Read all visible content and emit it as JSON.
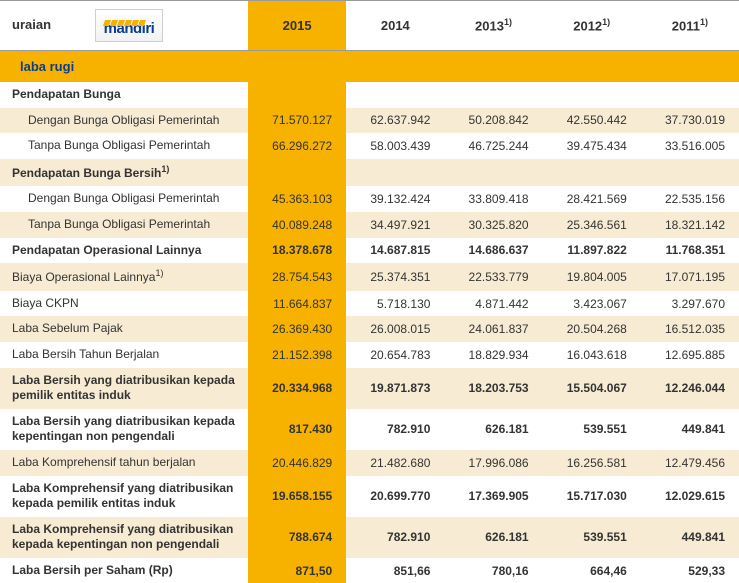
{
  "header": {
    "uraian": "uraian",
    "logo": "mandiri",
    "cols": [
      "2015",
      "2014",
      "2013",
      "2012",
      "2011"
    ],
    "footnote_cols": [
      2,
      3,
      4
    ]
  },
  "section_title": "laba rugi",
  "rows": [
    {
      "label": "Pendapatan Bunga",
      "bold": true,
      "indent": false,
      "sup": false,
      "stripe": false,
      "vals": [
        "",
        "",
        "",
        "",
        ""
      ]
    },
    {
      "label": "Dengan Bunga Obligasi Pemerintah",
      "bold": false,
      "indent": true,
      "sup": false,
      "stripe": true,
      "vals": [
        "71.570.127",
        "62.637.942",
        "50.208.842",
        "42.550.442",
        "37.730.019"
      ]
    },
    {
      "label": "Tanpa Bunga Obligasi Pemerintah",
      "bold": false,
      "indent": true,
      "sup": false,
      "stripe": false,
      "vals": [
        "66.296.272",
        "58.003.439",
        "46.725.244",
        "39.475.434",
        "33.516.005"
      ]
    },
    {
      "label": "Pendapatan Bunga Bersih",
      "bold": true,
      "indent": false,
      "sup": true,
      "stripe": true,
      "vals": [
        "",
        "",
        "",
        "",
        ""
      ]
    },
    {
      "label": "Dengan Bunga Obligasi Pemerintah",
      "bold": false,
      "indent": true,
      "sup": false,
      "stripe": false,
      "vals": [
        "45.363.103",
        "39.132.424",
        "33.809.418",
        "28.421.569",
        "22.535.156"
      ]
    },
    {
      "label": "Tanpa Bunga Obligasi Pemerintah",
      "bold": false,
      "indent": true,
      "sup": false,
      "stripe": true,
      "vals": [
        "40.089.248",
        "34.497.921",
        "30.325.820",
        "25.346.561",
        "18.321.142"
      ]
    },
    {
      "label": "Pendapatan Operasional Lainnya",
      "bold": true,
      "indent": false,
      "sup": false,
      "stripe": false,
      "vals": [
        "18.378.678",
        "14.687.815",
        "14.686.637",
        "11.897.822",
        "11.768.351"
      ]
    },
    {
      "label": "Biaya Operasional Lainnya",
      "bold": false,
      "indent": false,
      "sup": true,
      "stripe": true,
      "vals": [
        "28.754.543",
        "25.374.351",
        "22.533.779",
        "19.804.005",
        "17.071.195"
      ]
    },
    {
      "label": "Biaya CKPN",
      "bold": false,
      "indent": false,
      "sup": false,
      "stripe": false,
      "vals": [
        "11.664.837",
        "5.718.130",
        "4.871.442",
        "3.423.067",
        "3.297.670"
      ]
    },
    {
      "label": "Laba Sebelum Pajak",
      "bold": false,
      "indent": false,
      "sup": false,
      "stripe": true,
      "vals": [
        "26.369.430",
        "26.008.015",
        "24.061.837",
        "20.504.268",
        "16.512.035"
      ]
    },
    {
      "label": "Laba Bersih Tahun Berjalan",
      "bold": false,
      "indent": false,
      "sup": false,
      "stripe": false,
      "vals": [
        "21.152.398",
        "20.654.783",
        "18.829.934",
        "16.043.618",
        "12.695.885"
      ]
    },
    {
      "label": "Laba Bersih yang diatribusikan kepada pemilik entitas induk",
      "bold": true,
      "indent": false,
      "sup": false,
      "stripe": true,
      "vals": [
        "20.334.968",
        "19.871.873",
        "18.203.753",
        "15.504.067",
        "12.246.044"
      ]
    },
    {
      "label": "Laba Bersih yang diatribusikan kepada kepentingan non pengendali",
      "bold": true,
      "indent": false,
      "sup": false,
      "stripe": false,
      "vals": [
        "817.430",
        "782.910",
        "626.181",
        "539.551",
        "449.841"
      ]
    },
    {
      "label": "Laba Komprehensif tahun berjalan",
      "bold": false,
      "indent": false,
      "sup": false,
      "stripe": true,
      "vals": [
        "20.446.829",
        "21.482.680",
        "17.996.086",
        "16.256.581",
        "12.479.456"
      ]
    },
    {
      "label": "Laba Komprehensif yang diatribusikan kepada pemilik entitas induk",
      "bold": true,
      "indent": false,
      "sup": false,
      "stripe": false,
      "vals": [
        "19.658.155",
        "20.699.770",
        "17.369.905",
        "15.717.030",
        "12.029.615"
      ]
    },
    {
      "label": "Laba Komprehensif yang diatribusikan kepada kepentingan non pengendali",
      "bold": true,
      "indent": false,
      "sup": false,
      "stripe": true,
      "vals": [
        "788.674",
        "782.910",
        "626.181",
        "539.551",
        "449.841"
      ]
    },
    {
      "label": "Laba Bersih per Saham (Rp)",
      "bold": true,
      "indent": false,
      "sup": false,
      "stripe": false,
      "vals": [
        "871,50",
        "851,66",
        "780,16",
        "664,46",
        "529,33"
      ]
    }
  ],
  "colors": {
    "gold": "#f7b200",
    "stripe": "#f7ecd3",
    "logo_blue": "#0a3d91"
  }
}
